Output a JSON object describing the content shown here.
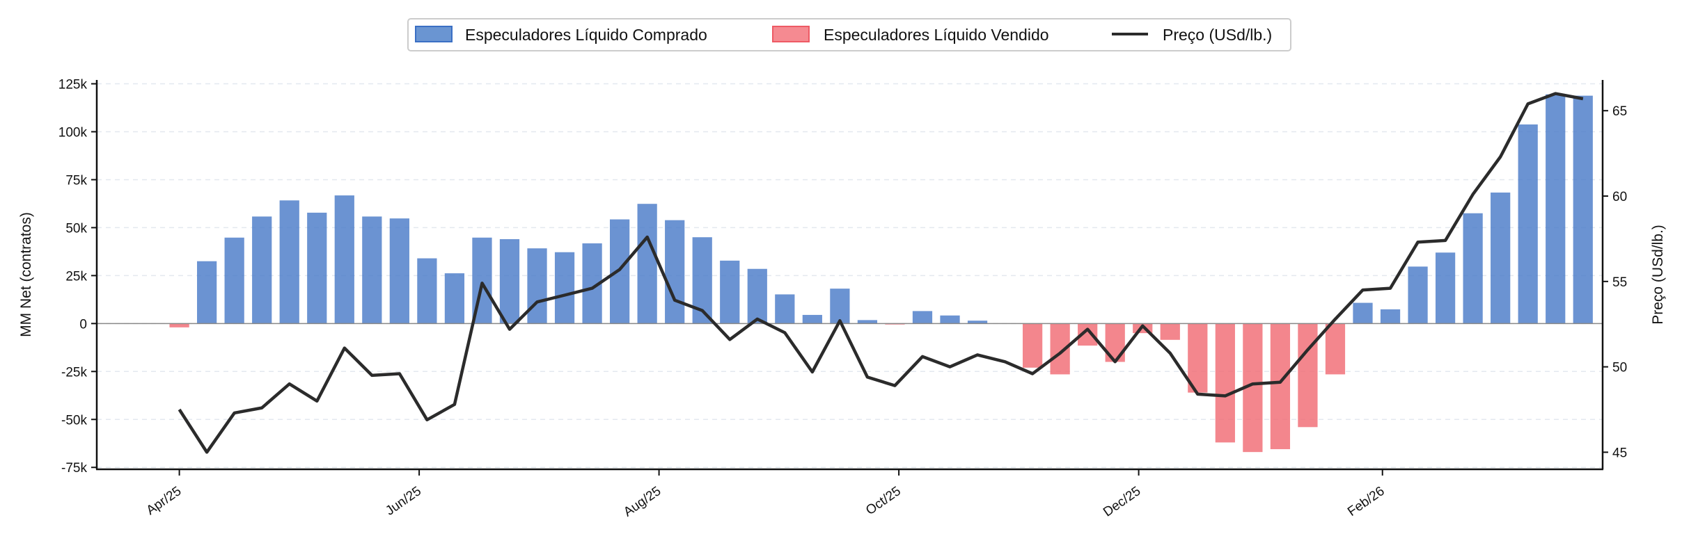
{
  "chart_data": {
    "type": "bar",
    "title": "",
    "ylabel": "MM Net (contratos)",
    "y2label": "Preço (USd/lb.)",
    "ylim": [
      -76000,
      127000
    ],
    "y2lim": [
      44,
      66.8
    ],
    "yticks": [
      -75000,
      -50000,
      -25000,
      0,
      25000,
      50000,
      75000,
      100000,
      125000
    ],
    "ytick_labels": [
      "-75k",
      "-50k",
      "-25k",
      "0",
      "25k",
      "50k",
      "75k",
      "100k",
      "125k"
    ],
    "y2ticks": [
      45,
      50,
      55,
      60,
      65
    ],
    "y2tick_labels": [
      "45",
      "50",
      "55",
      "60",
      "65"
    ],
    "xticks": [
      "2025-04-01",
      "2025-06-01",
      "2025-08-01",
      "2025-10-01",
      "2025-12-01",
      "2026-02-01"
    ],
    "xtick_labels": [
      "Apr/25",
      "Jun/25",
      "Aug/25",
      "Oct/25",
      "Dec/25",
      "Feb/26"
    ],
    "xlim": [
      "2025-03-11",
      "2026-03-29"
    ],
    "grid": "horizontal dashed",
    "legend_position": "top-center",
    "colors": {
      "positive": "#4a7bc8",
      "negative": "#f06b74",
      "line": "#2b2b2b"
    },
    "legend": [
      {
        "label": "Especuladores Líquido Comprado",
        "kind": "bar-positive"
      },
      {
        "label": "Especuladores Líquido Vendido",
        "kind": "bar-negative"
      },
      {
        "label": "Preço (USd/lb.)",
        "kind": "line"
      }
    ],
    "x": [
      "2025-04-01",
      "2025-04-08",
      "2025-04-15",
      "2025-04-22",
      "2025-04-29",
      "2025-05-06",
      "2025-05-13",
      "2025-05-20",
      "2025-05-27",
      "2025-06-03",
      "2025-06-10",
      "2025-06-17",
      "2025-06-24",
      "2025-07-01",
      "2025-07-08",
      "2025-07-15",
      "2025-07-22",
      "2025-07-29",
      "2025-08-05",
      "2025-08-12",
      "2025-08-19",
      "2025-08-26",
      "2025-09-02",
      "2025-09-09",
      "2025-09-16",
      "2025-09-23",
      "2025-09-30",
      "2025-10-07",
      "2025-10-14",
      "2025-10-21",
      "2025-10-28",
      "2025-11-04",
      "2025-11-11",
      "2025-11-18",
      "2025-11-25",
      "2025-12-02",
      "2025-12-09",
      "2025-12-16",
      "2025-12-23",
      "2025-12-30",
      "2026-01-06",
      "2026-01-13",
      "2026-01-20",
      "2026-01-27",
      "2026-02-03",
      "2026-02-10",
      "2026-02-17",
      "2026-02-24",
      "2026-03-03",
      "2026-03-10",
      "2026-03-17",
      "2026-03-24"
    ],
    "series": [
      {
        "name": "Especuladores Líquido Comprado / Vendido",
        "type": "bar",
        "axis": "left",
        "values": [
          -2000,
          32500,
          44800,
          55800,
          64200,
          57800,
          66800,
          55800,
          54800,
          34000,
          26200,
          44800,
          44000,
          39200,
          37200,
          41800,
          54300,
          62400,
          53900,
          45000,
          32800,
          28500,
          15200,
          4500,
          18200,
          1800,
          -500,
          6500,
          4200,
          1500,
          0,
          -23000,
          -26500,
          -11500,
          -20000,
          -5000,
          -8500,
          -36000,
          -62000,
          -67000,
          -65500,
          -54000,
          -26500,
          10800,
          7400,
          29700,
          37000,
          57500,
          68300,
          103800,
          119500,
          118800
        ]
      },
      {
        "name": "Preço (USd/lb.)",
        "type": "line",
        "axis": "right",
        "values": [
          47.5,
          45.0,
          47.3,
          47.6,
          49.0,
          48.0,
          51.1,
          49.5,
          49.6,
          46.9,
          47.8,
          54.9,
          52.2,
          53.8,
          54.2,
          54.6,
          55.7,
          57.6,
          53.9,
          53.3,
          51.6,
          52.8,
          52.0,
          49.7,
          52.7,
          49.4,
          48.9,
          50.6,
          50.0,
          50.7,
          50.3,
          49.6,
          50.8,
          52.2,
          50.3,
          52.4,
          50.8,
          48.4,
          48.3,
          49.0,
          49.1,
          51.0,
          52.8,
          54.5,
          54.6,
          57.3,
          57.4,
          60.1,
          62.3,
          65.4,
          66.0,
          65.7
        ]
      }
    ]
  }
}
